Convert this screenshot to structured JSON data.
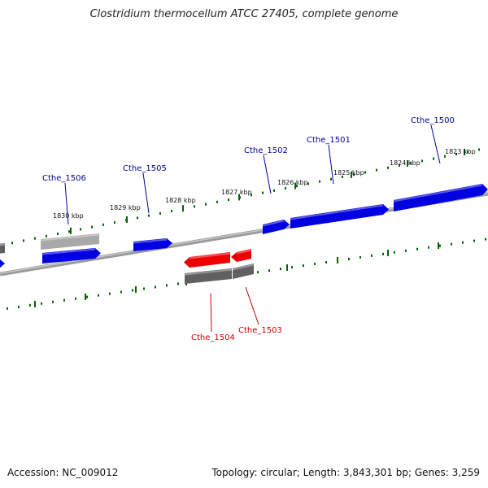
{
  "title": "Clostridium thermocellum ATCC 27405, complete genome",
  "footer": {
    "accession": "Accession: NC_009012",
    "topology": "Topology: circular; Length: 3,843,301 bp; Genes: 3,259"
  },
  "colors": {
    "forward_gene": "#0000e0",
    "reverse_gene": "#ee0000",
    "rna_gene": "#606060",
    "pseudo_gene": "#a8a8a8",
    "tick": "#006600",
    "backbone": "#808080",
    "forward_label": "#000099",
    "reverse_label": "#cc0000"
  },
  "scale_ticks": [
    {
      "label": "1823 kbp"
    },
    {
      "label": "1824 kbp"
    },
    {
      "label": "1825 kbp"
    },
    {
      "label": "1826 kbp"
    },
    {
      "label": "1827 kbp"
    },
    {
      "label": "1828 kbp"
    },
    {
      "label": "1829 kbp"
    },
    {
      "label": "1830 kbp"
    }
  ],
  "gene_labels": [
    {
      "label": "Cthe_1500",
      "strand": "forward"
    },
    {
      "label": "Cthe_1501",
      "strand": "forward"
    },
    {
      "label": "Cthe_1502",
      "strand": "forward"
    },
    {
      "label": "Cthe_1505",
      "strand": "forward"
    },
    {
      "label": "Cthe_1506",
      "strand": "forward"
    },
    {
      "label": "Cthe_1504",
      "strand": "reverse"
    },
    {
      "label": "Cthe_1503",
      "strand": "reverse"
    }
  ]
}
